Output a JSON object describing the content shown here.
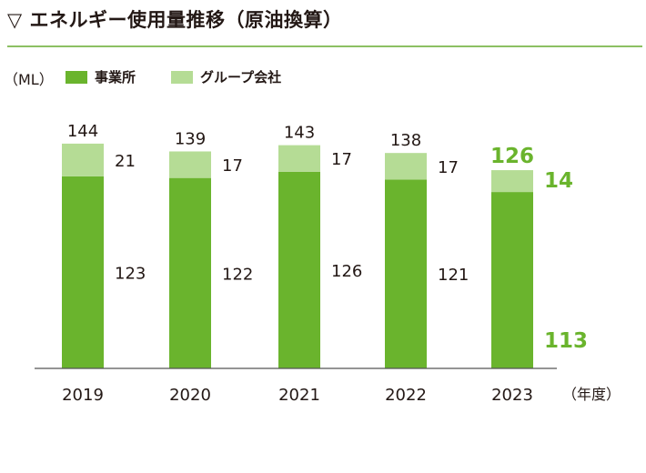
{
  "title": "▽ エネルギー使用量推移（原油換算）",
  "unit_label": "（ML）",
  "x_axis_unit": "（年度）",
  "colors": {
    "office": "#6ab42d",
    "group": "#b5dc95",
    "highlight": "#6ab42d",
    "rule": "#8cc063"
  },
  "chart_data": {
    "type": "bar",
    "stacked": true,
    "categories": [
      "2019",
      "2020",
      "2021",
      "2022",
      "2023"
    ],
    "series": [
      {
        "name": "事業所",
        "values": [
          123,
          122,
          126,
          121,
          113
        ]
      },
      {
        "name": "グループ会社",
        "values": [
          21,
          17,
          17,
          17,
          14
        ]
      }
    ],
    "totals": [
      144,
      139,
      143,
      138,
      126
    ],
    "highlight_category": "2023",
    "ylabel": "（ML）",
    "xlabel": "（年度）",
    "ylim": [
      0,
      150
    ],
    "grid": false,
    "legend_position": "top-left"
  }
}
